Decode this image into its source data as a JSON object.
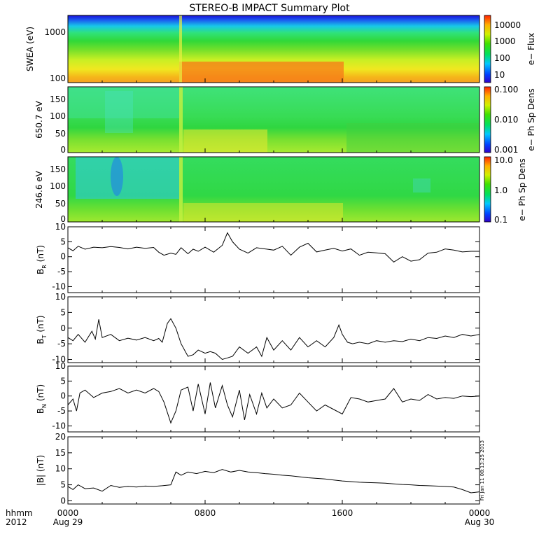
{
  "title": "STEREO-B IMPACT Summary Plot",
  "footer": {
    "row1_label": "hhmm",
    "row2_label": "2012",
    "x_ticks": [
      "0000",
      "0800",
      "1600",
      "0000"
    ],
    "date_start": "Aug 29",
    "date_end": "Aug 30"
  },
  "timestamp": "Fri Jan 11 08:13:25 2013",
  "chart_data": [
    {
      "type": "heatmap",
      "id": "swea",
      "ylabel": "SWEA (eV)",
      "yscale": "log",
      "ylim": [
        85,
        2000
      ],
      "y_ticks": [
        "1000",
        "100"
      ],
      "colorbar_label": "e− Flux",
      "colorbar_scale": "log",
      "colorbar_ticks": [
        "10000",
        "1000",
        "100",
        "10"
      ],
      "x": "time 2012-08-29 00:00 to 2012-08-30 00:00"
    },
    {
      "type": "heatmap",
      "id": "pad650",
      "ylabel": "650.7 eV",
      "ylim": [
        -10,
        180
      ],
      "y_ticks": [
        "150",
        "100",
        "50",
        "0"
      ],
      "colorbar_label": "e− Ph Sp Dens",
      "colorbar_scale": "log",
      "colorbar_ticks": [
        "0.100",
        "0.010",
        "0.001"
      ]
    },
    {
      "type": "heatmap",
      "id": "pad246",
      "ylabel": "246.6 eV",
      "ylim": [
        -10,
        180
      ],
      "y_ticks": [
        "150",
        "100",
        "50",
        "0"
      ],
      "colorbar_label": "e− Ph Sp Dens",
      "colorbar_scale": "log",
      "colorbar_ticks": [
        "10.0",
        "1.0",
        "0.1"
      ]
    },
    {
      "type": "line",
      "id": "br",
      "ylabel_main": "B",
      "ylabel_sub": "R",
      "ylabel_unit": " (nT)",
      "ylim": [
        -12,
        10
      ],
      "y_ticks": [
        "10",
        "5",
        "0",
        "-5",
        "-10"
      ],
      "x_hours": [
        0,
        0.3,
        0.6,
        1,
        1.5,
        2,
        2.5,
        3,
        3.5,
        4,
        4.5,
        5,
        5.3,
        5.6,
        6,
        6.3,
        6.6,
        7,
        7.3,
        7.6,
        8,
        8.5,
        9,
        9.3,
        9.6,
        10,
        10.5,
        11,
        11.5,
        12,
        12.5,
        13,
        13.5,
        14,
        14.5,
        15,
        15.5,
        16,
        16.5,
        17,
        17.5,
        18,
        18.5,
        19,
        19.5,
        20,
        20.5,
        21,
        21.5,
        22,
        22.5,
        23,
        23.5,
        24
      ],
      "values": [
        3,
        2,
        3.5,
        2.5,
        3.2,
        3,
        3.4,
        3.1,
        2.6,
        3.2,
        2.8,
        3.1,
        1.5,
        0.5,
        1.2,
        0.8,
        3,
        1,
        2.5,
        1.8,
        3.2,
        1.5,
        3.8,
        8,
        5,
        2.5,
        1.2,
        3,
        2.6,
        2.2,
        3.5,
        0.5,
        3.2,
        4.5,
        1.6,
        2.2,
        2.8,
        1.9,
        2.6,
        0.5,
        1.5,
        1.3,
        1,
        -1.8,
        0,
        -1.5,
        -1,
        1.2,
        1.5,
        2.6,
        2.2,
        1.6,
        1.8,
        1.8
      ]
    },
    {
      "type": "line",
      "id": "bt",
      "ylabel_main": "B",
      "ylabel_sub": "T",
      "ylabel_unit": " (nT)",
      "ylim": [
        -11,
        10
      ],
      "y_ticks": [
        "10",
        "5",
        "0",
        "-5",
        "-10"
      ],
      "x_hours": [
        0,
        0.3,
        0.6,
        1,
        1.4,
        1.6,
        1.8,
        2,
        2.5,
        3,
        3.5,
        4,
        4.5,
        5,
        5.3,
        5.5,
        5.8,
        6,
        6.3,
        6.6,
        7,
        7.3,
        7.6,
        8,
        8.3,
        8.6,
        9,
        9.3,
        9.6,
        10,
        10.5,
        11,
        11.3,
        11.6,
        12,
        12.5,
        13,
        13.5,
        14,
        14.5,
        15,
        15.5,
        15.8,
        16,
        16.3,
        16.6,
        17,
        17.5,
        18,
        18.5,
        19,
        19.5,
        20,
        20.5,
        21,
        21.5,
        22,
        22.5,
        23,
        23.5,
        24
      ],
      "values": [
        -3,
        -4,
        -2,
        -4.5,
        -1,
        -3.5,
        2.8,
        -3,
        -2,
        -4,
        -3.2,
        -3.8,
        -3,
        -4,
        -3.3,
        -4.5,
        1.5,
        3,
        0,
        -5,
        -9,
        -8.5,
        -7,
        -8,
        -7.5,
        -8,
        -10,
        -9.5,
        -9,
        -6,
        -8,
        -6,
        -9,
        -3,
        -7,
        -4,
        -7,
        -3,
        -6,
        -4,
        -6,
        -3,
        1,
        -2,
        -4.5,
        -5,
        -4.5,
        -5,
        -4,
        -4.5,
        -4,
        -4.3,
        -3.5,
        -4,
        -3,
        -3.3,
        -2.5,
        -3,
        -2,
        -2.5,
        -2
      ]
    },
    {
      "type": "line",
      "id": "bn",
      "ylabel_main": "B",
      "ylabel_sub": "N",
      "ylabel_unit": " (nT)",
      "ylim": [
        -12,
        10
      ],
      "y_ticks": [
        "10",
        "5",
        "0",
        "-5",
        "-10"
      ],
      "x_hours": [
        0,
        0.3,
        0.5,
        0.7,
        1,
        1.5,
        2,
        2.5,
        3,
        3.5,
        4,
        4.5,
        5,
        5.3,
        5.6,
        6,
        6.3,
        6.6,
        7,
        7.3,
        7.6,
        8,
        8.3,
        8.6,
        9,
        9.3,
        9.6,
        10,
        10.3,
        10.6,
        11,
        11.3,
        11.6,
        12,
        12.5,
        13,
        13.5,
        14,
        14.5,
        15,
        15.5,
        16,
        16.5,
        17,
        17.5,
        18,
        18.5,
        19,
        19.5,
        20,
        20.5,
        21,
        21.5,
        22,
        22.5,
        23,
        23.5,
        24
      ],
      "values": [
        -3,
        -1,
        -5,
        1,
        2,
        -0.5,
        1,
        1.5,
        2.5,
        1,
        2,
        1,
        2.5,
        1.5,
        -2,
        -9,
        -5,
        2,
        3,
        -5,
        4,
        -6,
        4.5,
        -4,
        3.5,
        -3,
        -7,
        2,
        -8,
        0.5,
        -6,
        1,
        -4,
        -1,
        -4,
        -3,
        1,
        -2,
        -5,
        -3,
        -4.5,
        -6,
        -0.5,
        -1,
        -2,
        -1.5,
        -1,
        2.5,
        -2,
        -1,
        -1.5,
        0.5,
        -1,
        -0.5,
        -0.8,
        0,
        -0.2,
        0
      ]
    },
    {
      "type": "line",
      "id": "bmag",
      "ylabel_main": "|B|",
      "ylabel_unit": " (nT)",
      "ylim": [
        -1,
        20
      ],
      "y_ticks": [
        "20",
        "15",
        "10",
        "5",
        "0"
      ],
      "x_hours": [
        0,
        0.3,
        0.6,
        1,
        1.5,
        2,
        2.5,
        3,
        3.5,
        4,
        4.5,
        5,
        5.5,
        6,
        6.3,
        6.6,
        7,
        7.5,
        8,
        8.5,
        9,
        9.5,
        10,
        10.5,
        11,
        11.5,
        12,
        12.5,
        13,
        13.5,
        14,
        14.5,
        15,
        15.5,
        16,
        16.5,
        17,
        17.5,
        18,
        18.5,
        19,
        19.5,
        20,
        20.5,
        21,
        21.5,
        22,
        22.5,
        23,
        23.5,
        24
      ],
      "values": [
        4.5,
        3.5,
        5,
        3.8,
        4,
        3,
        4.8,
        4.2,
        4.5,
        4.3,
        4.6,
        4.5,
        4.7,
        5,
        9,
        8,
        9,
        8.5,
        9.2,
        8.8,
        9.8,
        9,
        9.5,
        9,
        8.8,
        8.5,
        8.3,
        8,
        7.8,
        7.5,
        7.2,
        7,
        6.8,
        6.5,
        6.2,
        6,
        5.8,
        5.7,
        5.6,
        5.5,
        5.3,
        5.1,
        5,
        4.8,
        4.7,
        4.6,
        4.5,
        4.3,
        3.5,
        2.5,
        2.8
      ]
    }
  ]
}
